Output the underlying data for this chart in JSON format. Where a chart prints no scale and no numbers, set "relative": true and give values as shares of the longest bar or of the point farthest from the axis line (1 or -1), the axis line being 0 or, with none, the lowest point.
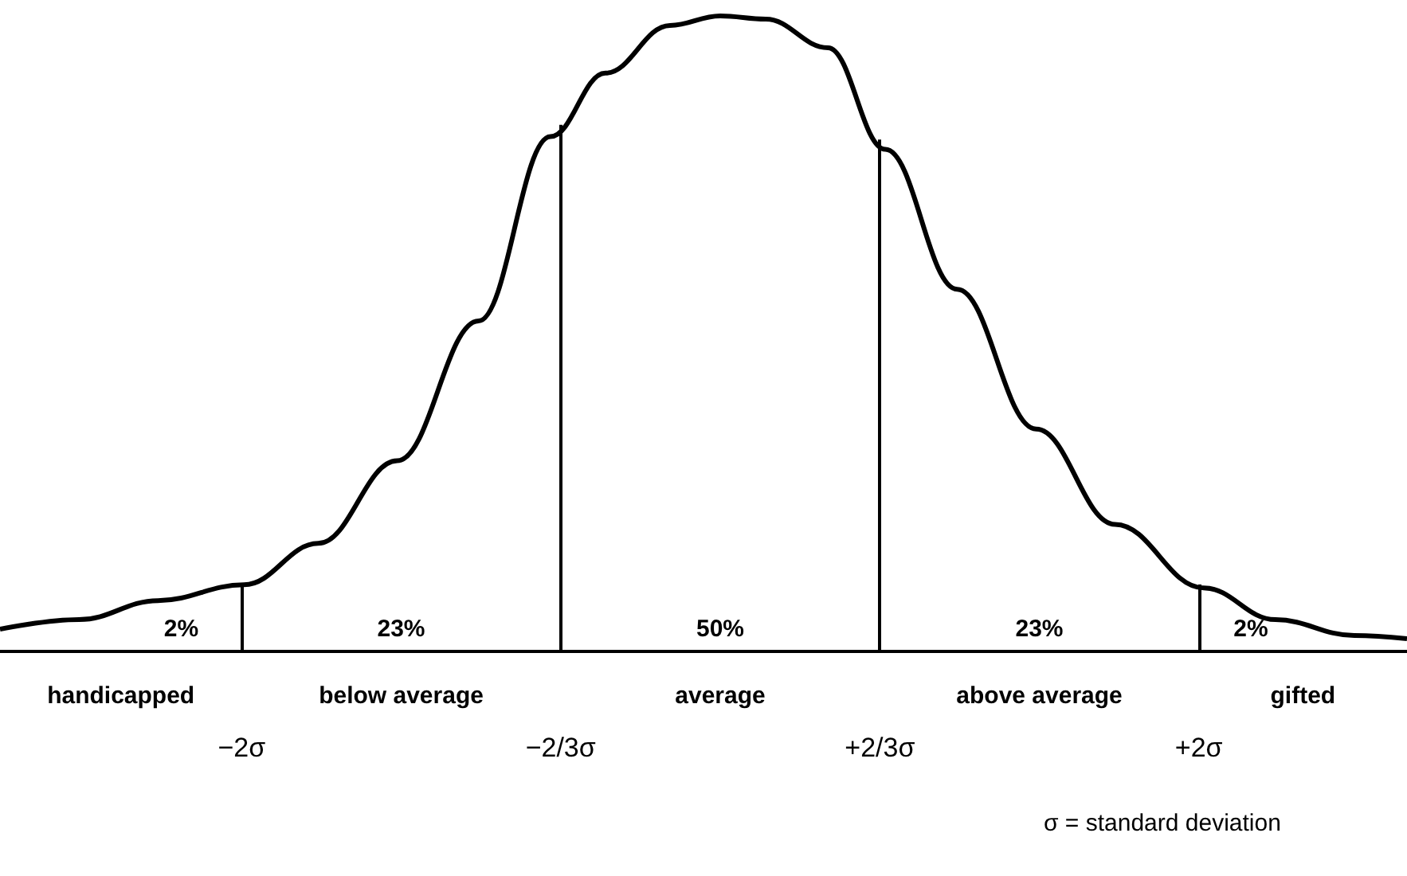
{
  "chart_data": {
    "type": "line",
    "relative": true,
    "color": "#000000",
    "marker": "none",
    "grid": false,
    "x": [
      -3.01,
      -2.68,
      -2.35,
      -1.99,
      -1.68,
      -1.35,
      -1.01,
      -0.71,
      -0.48,
      -0.21,
      0,
      0.19,
      0.45,
      0.69,
      0.99,
      1.32,
      1.65,
      2.02,
      2.32,
      2.65,
      2.87
    ],
    "values": [
      0.035,
      0.05,
      0.08,
      0.105,
      0.17,
      0.3,
      0.52,
      0.81,
      0.91,
      0.985,
      1,
      0.995,
      0.95,
      0.79,
      0.57,
      0.35,
      0.2,
      0.1,
      0.05,
      0.025,
      0.02
    ],
    "xlim": [
      -3.01,
      2.87
    ],
    "xticks": [
      {
        "value": -2,
        "label": "−2σ"
      },
      {
        "value": -0.667,
        "label": "−2/3σ"
      },
      {
        "value": 0.667,
        "label": "+2/3σ"
      },
      {
        "value": 2,
        "label": "+2σ"
      }
    ],
    "ref_lines": [
      {
        "axis": "x",
        "value": -2
      },
      {
        "axis": "x",
        "value": -0.667
      },
      {
        "axis": "x",
        "value": 0.667
      },
      {
        "axis": "x",
        "value": 2
      }
    ],
    "annotations": [
      "2%",
      "23%",
      "50%",
      "23%",
      "2%",
      "handicapped",
      "below average",
      "average",
      "above average",
      "gifted",
      "σ = standard deviation"
    ]
  }
}
